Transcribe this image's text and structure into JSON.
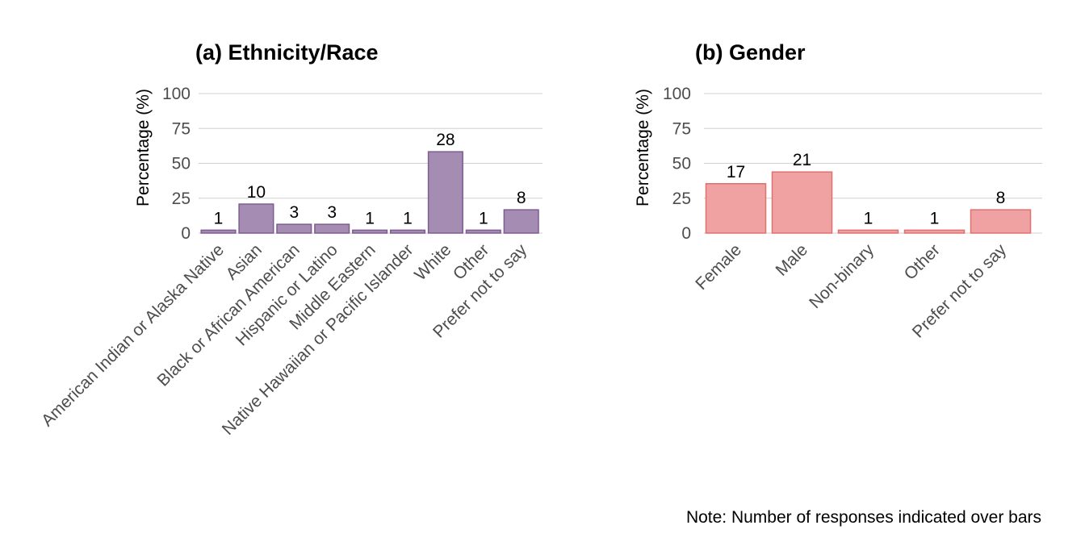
{
  "chart_data": [
    {
      "type": "bar",
      "title": "(a) Ethnicity/Race",
      "xlabel": "",
      "ylabel": "Percentage (%)",
      "ylim": [
        0,
        100
      ],
      "yticks": [
        0,
        25,
        50,
        75,
        100
      ],
      "grid": true,
      "categories": [
        "American Indian or Alaska Native",
        "Asian",
        "Black or African American",
        "Hispanic or Latino",
        "Middle Eastern",
        "Native Hawaiian or Pacific Islander",
        "White",
        "Other",
        "Prefer not to say"
      ],
      "values": [
        2.1,
        20.8,
        6.3,
        6.3,
        2.1,
        2.1,
        58.3,
        2.1,
        16.7
      ],
      "counts": [
        "1",
        "10",
        "3",
        "3",
        "1",
        "1",
        "28",
        "1",
        "8"
      ],
      "colors": {
        "fill": "#a58cb3",
        "stroke": "#7e5d92"
      }
    },
    {
      "type": "bar",
      "title": "(b) Gender",
      "xlabel": "",
      "ylabel": "Percentage (%)",
      "ylim": [
        0,
        100
      ],
      "yticks": [
        0,
        25,
        50,
        75,
        100
      ],
      "grid": true,
      "categories": [
        "Female",
        "Male",
        "Non-binary",
        "Other",
        "Prefer not to say"
      ],
      "values": [
        35.4,
        43.8,
        2.1,
        2.1,
        16.7
      ],
      "counts": [
        "17",
        "21",
        "1",
        "1",
        "8"
      ],
      "colors": {
        "fill": "#f0a2a2",
        "stroke": "#e07070"
      }
    }
  ],
  "note": "Note: Number of responses indicated over bars"
}
